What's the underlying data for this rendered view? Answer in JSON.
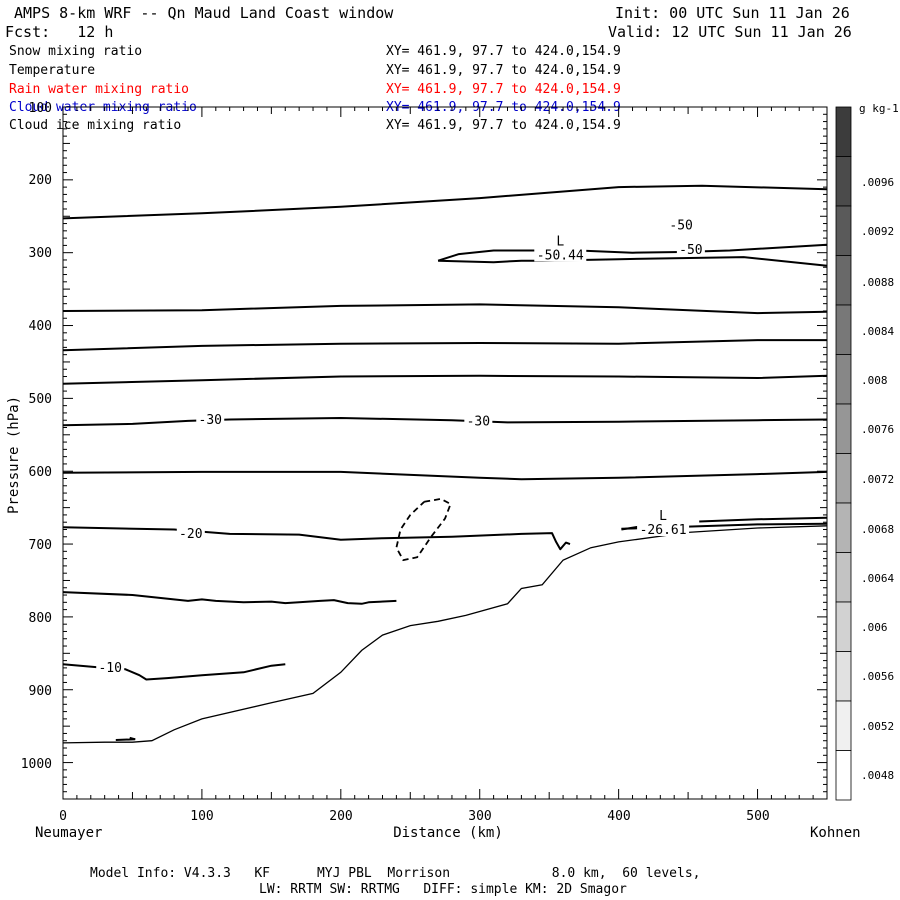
{
  "header": {
    "title": "AMPS 8-km WRF -- Qn Maud Land Coast window",
    "forecast": "Fcst:   12 h",
    "init": "Init: 00 UTC Sun 11 Jan 26",
    "valid": "Valid: 12 UTC Sun 11 Jan 26"
  },
  "fields": [
    {
      "name": "Snow mixing ratio",
      "xy": "XY= 461.9, 97.7 to 424.0,154.9",
      "color": "#000000"
    },
    {
      "name": "Temperature",
      "xy": "XY= 461.9, 97.7 to 424.0,154.9",
      "color": "#000000"
    },
    {
      "name": "Rain water mixing ratio",
      "xy": "XY= 461.9, 97.7 to 424.0,154.9",
      "color": "#ff0000"
    },
    {
      "name": "Cloud water mixing ratio",
      "xy": "XY= 461.9, 97.7 to 424.0,154.9",
      "color": "#0000cc"
    },
    {
      "name": "Cloud ice mixing ratio",
      "xy": "XY= 461.9, 97.7 to 424.0,154.9",
      "color": "#000000"
    }
  ],
  "footer": {
    "line1": "Model Info: V4.3.3   KF      MYJ PBL  Morrison             8.0 km,  60 levels,",
    "line2": "LW: RRTM SW: RRTMG   DIFF: simple KM: 2D Smagor"
  },
  "chart_data": {
    "type": "contour-cross-section",
    "xlabel": "Distance (km)",
    "ylabel": "Pressure (hPa)",
    "xlim": [
      0,
      550
    ],
    "ylim": [
      1050,
      100
    ],
    "x_ticks": [
      0,
      100,
      200,
      300,
      400,
      500
    ],
    "y_ticks": [
      200,
      300,
      400,
      500,
      600,
      700,
      800,
      900,
      1000
    ],
    "y_top_label": "100",
    "left_endpoint": "Neumayer",
    "right_endpoint": "Kohnen",
    "colorbar": {
      "unit": "g kg-1",
      "labels": [
        ".0096",
        ".0092",
        ".0088",
        ".0084",
        ".008",
        ".0076",
        ".0072",
        ".0068",
        ".0064",
        ".006",
        ".0056",
        ".0052",
        ".0048"
      ]
    },
    "contour_labels": [
      {
        "text": "-50",
        "x": 445,
        "p": 263
      },
      {
        "text": "-50",
        "x": 452,
        "p": 296
      },
      {
        "text": "-30",
        "x": 106,
        "p": 530
      },
      {
        "text": "-30",
        "x": 299,
        "p": 532
      },
      {
        "text": "-20",
        "x": 92,
        "p": 686
      },
      {
        "text": "-10",
        "x": 34,
        "p": 870
      }
    ],
    "extrema": [
      {
        "text": "L",
        "value": "-50.44",
        "x": 358,
        "p": 290
      },
      {
        "text": "L",
        "value": "-26.61",
        "x": 432,
        "p": 667
      }
    ],
    "isotherms": [
      {
        "level": -60,
        "points": [
          [
            0,
            253
          ],
          [
            100,
            246
          ],
          [
            200,
            237
          ],
          [
            300,
            225
          ],
          [
            400,
            210
          ],
          [
            460,
            208
          ],
          [
            550,
            213
          ]
        ]
      },
      {
        "level": -50,
        "points": [
          [
            270,
            311
          ],
          [
            285,
            302
          ],
          [
            310,
            297
          ],
          [
            330,
            297
          ],
          [
            350,
            297
          ],
          [
            371,
            297
          ],
          [
            410,
            300
          ],
          [
            445,
            299
          ],
          [
            480,
            297
          ],
          [
            550,
            289
          ]
        ]
      },
      {
        "level": -50,
        "points": [
          [
            270,
            311
          ],
          [
            310,
            313
          ],
          [
            330,
            311
          ],
          [
            345,
            311
          ],
          [
            400,
            309
          ],
          [
            490,
            306
          ],
          [
            550,
            318
          ]
        ]
      },
      {
        "level": -40,
        "points": [
          [
            0,
            380
          ],
          [
            100,
            379
          ],
          [
            200,
            373
          ],
          [
            300,
            371
          ],
          [
            400,
            375
          ],
          [
            500,
            383
          ],
          [
            550,
            381
          ]
        ]
      },
      {
        "level": -40,
        "points": [
          [
            0,
            434
          ],
          [
            100,
            428
          ],
          [
            200,
            425
          ],
          [
            300,
            424
          ],
          [
            400,
            425
          ],
          [
            500,
            420
          ],
          [
            550,
            420
          ]
        ]
      },
      {
        "level": -40,
        "points": [
          [
            0,
            480
          ],
          [
            100,
            475
          ],
          [
            200,
            470
          ],
          [
            300,
            469
          ],
          [
            400,
            470
          ],
          [
            500,
            472
          ],
          [
            550,
            469
          ]
        ]
      },
      {
        "level": -30,
        "points": [
          [
            0,
            537
          ],
          [
            50,
            535
          ],
          [
            90,
            531
          ],
          [
            120,
            529
          ],
          [
            200,
            527
          ],
          [
            280,
            530
          ],
          [
            320,
            533
          ],
          [
            400,
            532
          ],
          [
            500,
            530
          ],
          [
            550,
            529
          ]
        ]
      },
      {
        "level": -20,
        "points": [
          [
            0,
            602
          ],
          [
            100,
            601
          ],
          [
            200,
            601
          ],
          [
            300,
            609
          ],
          [
            330,
            611
          ],
          [
            400,
            609
          ],
          [
            500,
            604
          ],
          [
            550,
            601
          ]
        ]
      },
      {
        "level": -20,
        "points": [
          [
            0,
            677
          ],
          [
            80,
            680
          ],
          [
            120,
            686
          ],
          [
            170,
            687
          ],
          [
            200,
            694
          ],
          [
            230,
            692
          ],
          [
            280,
            690
          ],
          [
            330,
            686
          ],
          [
            352,
            685
          ],
          [
            355,
            697
          ],
          [
            358,
            707
          ],
          [
            362,
            698
          ],
          [
            365,
            700
          ]
        ]
      },
      {
        "level": -20,
        "points": [
          [
            402,
            680
          ],
          [
            415,
            676
          ],
          [
            430,
            671
          ]
        ]
      },
      {
        "level": -20,
        "points": [
          [
            458,
            669
          ],
          [
            500,
            666
          ],
          [
            550,
            664
          ]
        ]
      },
      {
        "level": -20,
        "points": [
          [
            402,
            679
          ],
          [
            450,
            676
          ],
          [
            500,
            673
          ],
          [
            550,
            672
          ]
        ]
      },
      {
        "level": -10,
        "points": [
          [
            0,
            766
          ],
          [
            50,
            770
          ],
          [
            90,
            778
          ],
          [
            100,
            776
          ],
          [
            110,
            778
          ],
          [
            130,
            780
          ],
          [
            150,
            779
          ],
          [
            160,
            781
          ],
          [
            170,
            780
          ],
          [
            185,
            778
          ],
          [
            195,
            777
          ],
          [
            205,
            781
          ],
          [
            215,
            782
          ],
          [
            220,
            780
          ],
          [
            240,
            778
          ]
        ]
      },
      {
        "level": -10,
        "points": [
          [
            0,
            865
          ],
          [
            30,
            870
          ],
          [
            45,
            872
          ],
          [
            55,
            880
          ],
          [
            60,
            886
          ],
          [
            75,
            884
          ],
          [
            100,
            880
          ],
          [
            130,
            876
          ],
          [
            150,
            867
          ],
          [
            160,
            865
          ]
        ]
      }
    ],
    "terrain": {
      "points": [
        [
          0,
          973
        ],
        [
          30,
          972
        ],
        [
          50,
          972
        ],
        [
          64,
          970
        ],
        [
          80,
          955
        ],
        [
          100,
          940
        ],
        [
          150,
          918
        ],
        [
          180,
          905
        ],
        [
          200,
          876
        ],
        [
          215,
          846
        ],
        [
          230,
          825
        ],
        [
          250,
          812
        ],
        [
          270,
          806
        ],
        [
          290,
          798
        ],
        [
          320,
          782
        ],
        [
          330,
          761
        ],
        [
          345,
          756
        ],
        [
          360,
          722
        ],
        [
          380,
          705
        ],
        [
          400,
          697
        ],
        [
          450,
          684
        ],
        [
          500,
          678
        ],
        [
          550,
          675
        ]
      ]
    },
    "cloud_ice_dashed": {
      "points": [
        [
          260,
          642
        ],
        [
          272,
          638
        ],
        [
          279,
          645
        ],
        [
          275,
          665
        ],
        [
          265,
          690
        ],
        [
          255,
          718
        ],
        [
          245,
          722
        ],
        [
          240,
          705
        ],
        [
          243,
          680
        ],
        [
          250,
          660
        ],
        [
          260,
          642
        ]
      ]
    }
  }
}
